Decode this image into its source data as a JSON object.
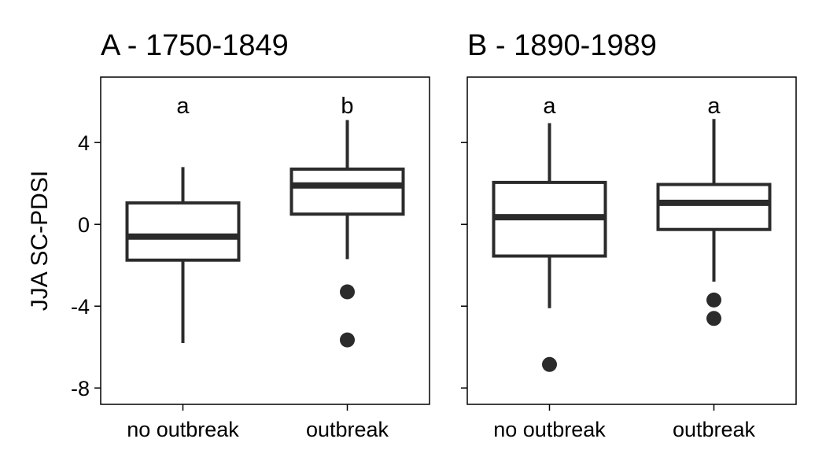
{
  "chart_data": [
    {
      "type": "boxplot",
      "title": "A - 1750-1849",
      "ylabel": "JJA SC-PDSI",
      "xlabel": "",
      "ylim": [
        -8.8,
        7.2
      ],
      "yticks": [
        -8,
        -4,
        0,
        4
      ],
      "ytick_labels": [
        "-8",
        "-4",
        "0",
        "4"
      ],
      "categories": [
        "no outbreak",
        "outbreak"
      ],
      "boxes": [
        {
          "category": "no outbreak",
          "whisker_low": -5.8,
          "q1": -1.75,
          "median": -0.6,
          "q3": 1.05,
          "whisker_high": 2.8,
          "outliers": [],
          "letter": "a"
        },
        {
          "category": "outbreak",
          "whisker_low": -1.7,
          "q1": 0.5,
          "median": 1.9,
          "q3": 2.7,
          "whisker_high": 5.1,
          "outliers": [
            -3.3,
            -5.65
          ],
          "letter": "b"
        }
      ],
      "grid": false,
      "legend": "none"
    },
    {
      "type": "boxplot",
      "title": "B - 1890-1989",
      "ylabel": "",
      "xlabel": "",
      "ylim": [
        -8.8,
        7.2
      ],
      "yticks": [
        -8,
        -4,
        0,
        4
      ],
      "ytick_labels": [
        "",
        "",
        "",
        ""
      ],
      "categories": [
        "no outbreak",
        "outbreak"
      ],
      "boxes": [
        {
          "category": "no outbreak",
          "whisker_low": -4.1,
          "q1": -1.55,
          "median": 0.35,
          "q3": 2.05,
          "whisker_high": 4.95,
          "outliers": [
            -6.85
          ],
          "letter": "a"
        },
        {
          "category": "outbreak",
          "whisker_low": -2.8,
          "q1": -0.25,
          "median": 1.05,
          "q3": 1.95,
          "whisker_high": 5.15,
          "outliers": [
            -3.7,
            -4.6
          ],
          "letter": "a"
        }
      ],
      "grid": false,
      "legend": "none"
    }
  ]
}
